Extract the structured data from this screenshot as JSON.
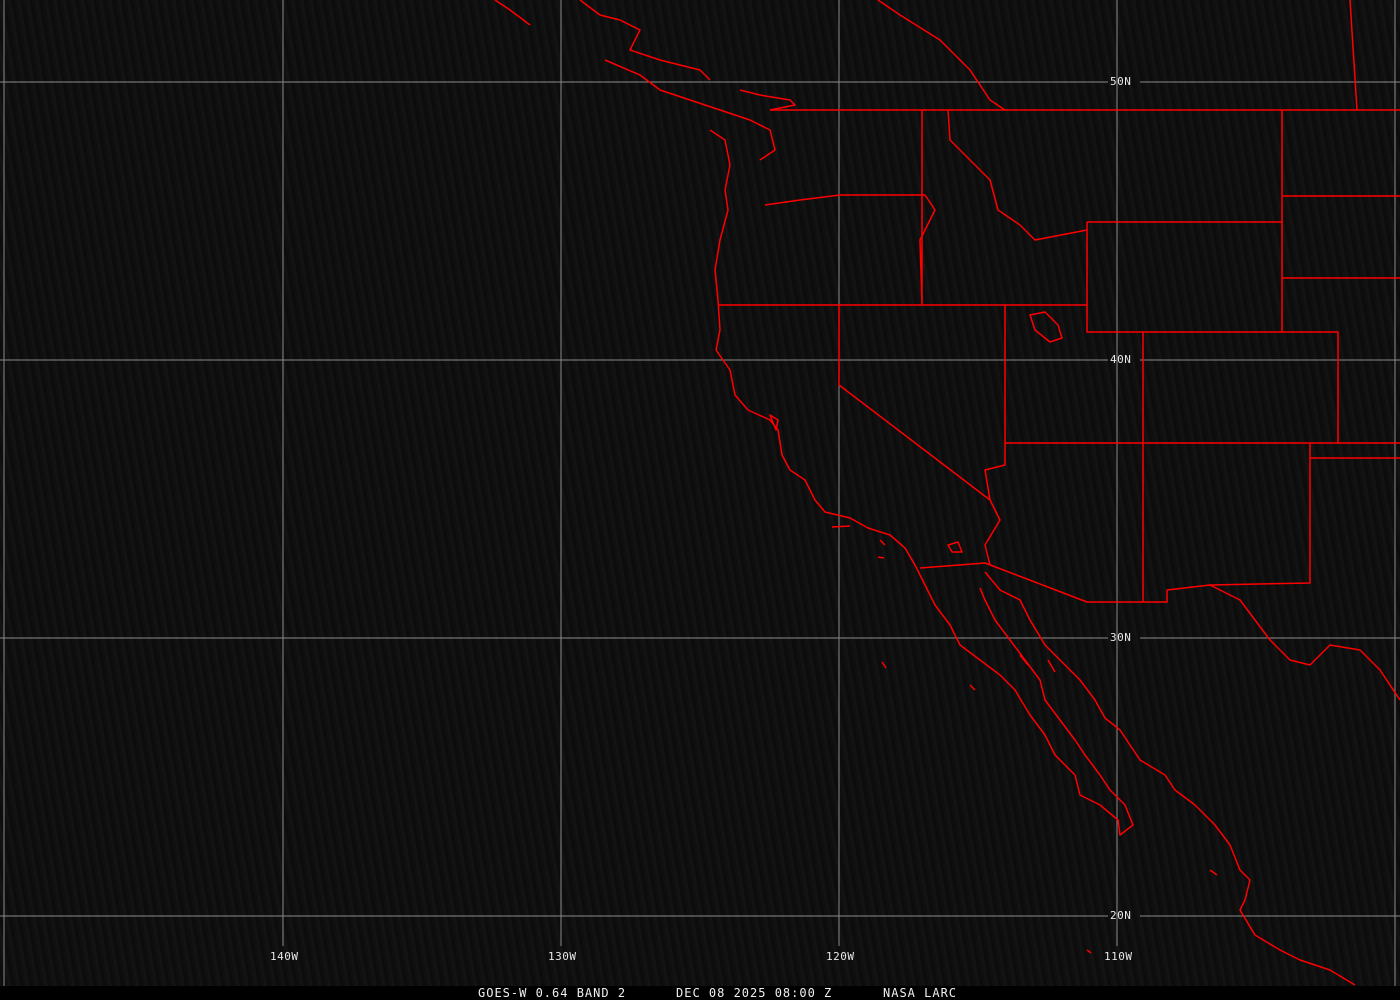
{
  "caption": {
    "satellite": "GOES-W 0.64 BAND 2",
    "datetime": "DEC 08 2025 08:00 Z",
    "source": "NASA LARC"
  },
  "lon_labels": [
    "140W",
    "130W",
    "120W",
    "110W"
  ],
  "lat_labels": [
    "50N",
    "40N",
    "30N",
    "20N"
  ],
  "colors": {
    "boundaries": "#ff0000",
    "grid": "#9a9a9a",
    "background": "#0d0d0d"
  }
}
